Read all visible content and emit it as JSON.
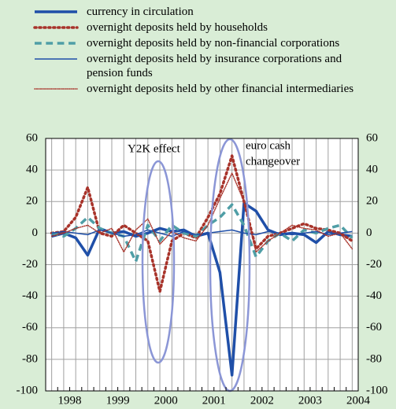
{
  "chart_data": {
    "type": "line",
    "categories": [
      "1998",
      null,
      null,
      null,
      "1999",
      null,
      null,
      null,
      "2000",
      null,
      null,
      null,
      "2001",
      null,
      null,
      null,
      "2002",
      null,
      null,
      null,
      "2003",
      null,
      null,
      null,
      "2004",
      null
    ],
    "series": [
      {
        "name": "currency in circulation",
        "color": "#1f4fa8",
        "style": "solid",
        "width": 3.5,
        "values": [
          -2,
          0,
          -3,
          -14,
          3,
          0,
          1,
          -2,
          0,
          3,
          1,
          2,
          -2,
          0,
          -25,
          -90,
          19,
          14,
          2,
          -1,
          0,
          -1,
          -6,
          1,
          -1,
          -2
        ]
      },
      {
        "name": "overnight deposits held by households",
        "color": "#a8332a",
        "style": "dotted",
        "width": 3.5,
        "values": [
          0,
          1,
          10,
          29,
          0,
          -2,
          5,
          0,
          -5,
          -37,
          -5,
          0,
          -3,
          10,
          25,
          49,
          20,
          -10,
          -2,
          0,
          3,
          6,
          3,
          2,
          0,
          -5
        ]
      },
      {
        "name": "overnight deposits held by non-financial corporations",
        "color": "#4f9ea6",
        "style": "dashed",
        "width": 3.5,
        "values": [
          0,
          -2,
          3,
          10,
          3,
          0,
          -2,
          -18,
          5,
          -5,
          5,
          0,
          -2,
          5,
          10,
          18,
          5,
          -15,
          -5,
          0,
          -5,
          2,
          0,
          3,
          5,
          -3
        ]
      },
      {
        "name": "overnight deposits held by insurance corporations and pension funds",
        "color": "#1f4fa8",
        "style": "solid",
        "width": 1.5,
        "values": [
          0,
          1,
          0,
          -1,
          2,
          0,
          -2,
          -1,
          2,
          0,
          -2,
          1,
          -1,
          0,
          1,
          2,
          0,
          -1,
          1,
          0,
          -1,
          0,
          1,
          -1,
          0,
          1
        ]
      },
      {
        "name": "overnight deposits held by other financial intermediaries",
        "color": "#a8332a",
        "style": "dotted",
        "width": 1.5,
        "values": [
          -2,
          0,
          3,
          5,
          0,
          3,
          -12,
          2,
          9,
          -7,
          1,
          -3,
          -5,
          5,
          22,
          38,
          20,
          -12,
          -5,
          0,
          5,
          3,
          2,
          -2,
          0,
          -10
        ]
      }
    ],
    "annotations": [
      "Y2K effect",
      "euro cash",
      "changeover"
    ],
    "ylim": [
      -100,
      60
    ],
    "yticks": [
      -100,
      -80,
      -60,
      -40,
      -20,
      0,
      20,
      40,
      60
    ],
    "grid": true
  }
}
